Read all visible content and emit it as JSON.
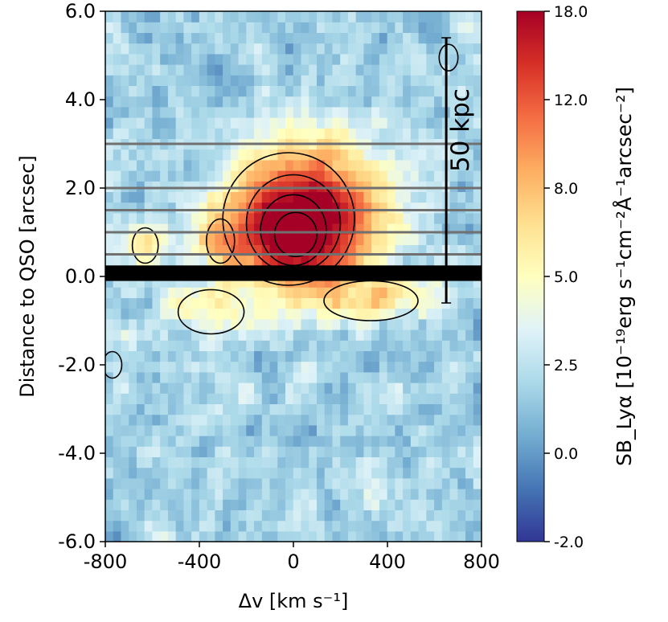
{
  "chart_data": {
    "type": "heatmap",
    "title": "",
    "xlabel": "Δv [km s⁻¹]",
    "ylabel": "Distance to QSO [arcsec]",
    "xlim": [
      -800,
      800
    ],
    "ylim": [
      -6.0,
      6.0
    ],
    "x_ticks": [
      -800,
      -400,
      0,
      400,
      800
    ],
    "x_tick_labels": [
      "-800",
      "-400",
      "0",
      "400",
      "800"
    ],
    "y_ticks": [
      6.0,
      4.0,
      2.0,
      0.0,
      -2.0,
      -4.0,
      -6.0
    ],
    "y_tick_labels": [
      "6.0",
      "4.0",
      "2.0",
      "0.0",
      "-2.0",
      "-4.0",
      "-6.0"
    ],
    "colorbar": {
      "label": "SB_Lyα [10⁻¹⁹erg s⁻¹cm⁻²Å⁻¹arcsec⁻²]",
      "range": [
        -2.0,
        18.0
      ],
      "ticks": [
        18.0,
        12.0,
        8.0,
        5.0,
        2.5,
        0.0,
        -2.0
      ],
      "tick_labels": [
        "18.0",
        "12.0",
        "8.0",
        "5.0",
        "2.5",
        "0.0",
        "-2.0"
      ],
      "colormap": [
        "#313695",
        "#4575b4",
        "#74add1",
        "#abd9e9",
        "#e0f3f8",
        "#ffffbf",
        "#fee090",
        "#fdae61",
        "#f46d43",
        "#d73027",
        "#a50026"
      ]
    },
    "emission_peak": {
      "dv_kms": 0,
      "distance_arcsec": 1.0,
      "sb_peak": 16.0
    },
    "masked_band_arcsec": [
      -0.1,
      0.25
    ],
    "horizontal_lines_arcsec": [
      3.0,
      2.0,
      1.5,
      1.0,
      0.5
    ],
    "scale_bar": {
      "label": "50 kpc",
      "dv_kms": 650,
      "from_arcsec": -0.6,
      "to_arcsec": 5.4
    }
  },
  "colors": {
    "line_gray": "#707070",
    "contour": "#000000",
    "mask": "#000000"
  }
}
